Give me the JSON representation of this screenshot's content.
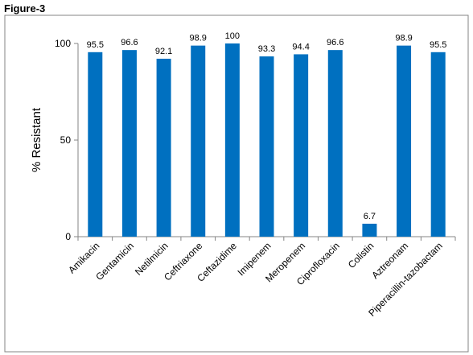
{
  "figure_label": "Figure-3",
  "chart_data": {
    "type": "bar",
    "title": "",
    "xlabel": "",
    "ylabel": "% Resistant",
    "ylim": [
      0,
      100
    ],
    "yticks": [
      "0",
      "50",
      "100"
    ],
    "grid": false,
    "bar_color": "#0070C0",
    "categories": [
      "Amikacin",
      "Gentamicin",
      "Netilmicin",
      "Ceftriaxone",
      "Ceftazidime",
      "Imipenem",
      "Meropenem",
      "Ciprofloxacin",
      "Colistin",
      "Aztreonam",
      "Piperacillin-tazobactam"
    ],
    "values": [
      95.5,
      96.6,
      92.1,
      98.9,
      100,
      93.3,
      94.4,
      96.6,
      6.7,
      98.9,
      95.5
    ],
    "data_labels": [
      "95.5",
      "96.6",
      "92.1",
      "98.9",
      "100",
      "93.3",
      "94.4",
      "96.6",
      "6.7",
      "98.9",
      "95.5"
    ]
  }
}
